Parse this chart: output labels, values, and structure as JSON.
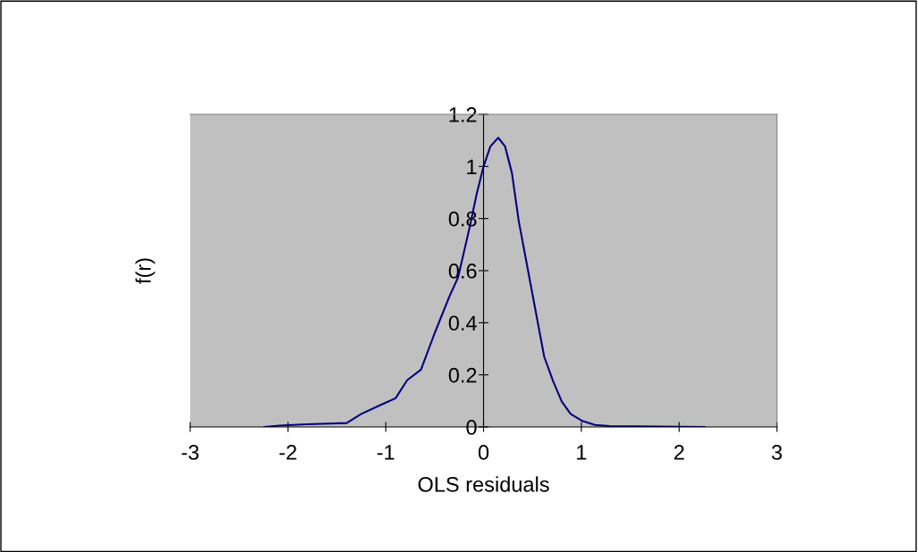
{
  "chart_data": {
    "type": "line",
    "xlabel": "OLS residuals",
    "ylabel": "f(r)",
    "xlim": [
      -3,
      3
    ],
    "xticks": [
      -3,
      -2,
      -1,
      0,
      1,
      2,
      3
    ],
    "ylim": [
      0,
      1.2
    ],
    "yticks": [
      0,
      0.2,
      0.4,
      0.6,
      0.8,
      1,
      1.2
    ],
    "grid": false,
    "legend": false,
    "series": [
      {
        "color": "#000080",
        "x": [
          -2.24,
          -2.09,
          -1.81,
          -1.4,
          -1.25,
          -1.05,
          -0.9,
          -0.78,
          -0.64,
          -0.5,
          -0.35,
          -0.26,
          -0.14,
          -0.07,
          0,
          0.07,
          0.15,
          0.22,
          0.29,
          0.36,
          0.44,
          0.53,
          0.62,
          0.71,
          0.8,
          0.89,
          1.01,
          1.14,
          1.29,
          2.26
        ],
        "values": [
          0,
          0.005,
          0.01,
          0.015,
          0.05,
          0.085,
          0.11,
          0.18,
          0.22,
          0.36,
          0.5,
          0.575,
          0.77,
          0.895,
          1.0,
          1.077,
          1.11,
          1.077,
          0.975,
          0.79,
          0.63,
          0.45,
          0.27,
          0.177,
          0.097,
          0.05,
          0.023,
          0.008,
          0.003,
          0
        ]
      }
    ]
  }
}
